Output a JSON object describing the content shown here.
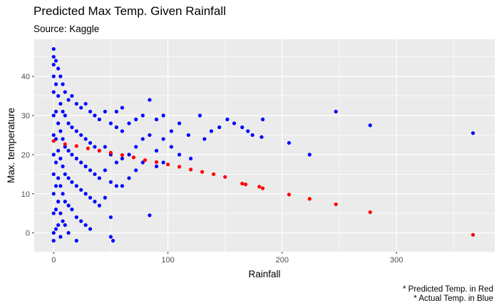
{
  "chart_data": {
    "type": "scatter",
    "title": "Predicted Max Temp. Given Rainfall",
    "subtitle": "Source: Kaggle",
    "xlabel": "Rainfall",
    "ylabel": "Max. temperature",
    "xlim": [
      -17,
      386
    ],
    "ylim": [
      -4.8,
      49.5
    ],
    "x_ticks": [
      "0",
      "100",
      "200",
      "300"
    ],
    "y_ticks": [
      "0",
      "10",
      "20",
      "30",
      "40"
    ],
    "x_tick_values": [
      0,
      100,
      200,
      300
    ],
    "y_tick_values": [
      0,
      10,
      20,
      30,
      40
    ],
    "grid": true,
    "captions": [
      "* Predicted Temp. in Red",
      "* Actual Temp. in Blue"
    ],
    "colors": {
      "actual": "#0000ff",
      "predicted": "#ff0000",
      "panel": "#ebebeb",
      "grid": "#ffffff"
    },
    "series": [
      {
        "values": [
          [
            0,
            47
          ],
          [
            0,
            45
          ],
          [
            0,
            43
          ],
          [
            0,
            40
          ],
          [
            0,
            36
          ],
          [
            0,
            30
          ],
          [
            0,
            25
          ],
          [
            0,
            20
          ],
          [
            0,
            15
          ],
          [
            0,
            10
          ],
          [
            0,
            5
          ],
          [
            0,
            0
          ],
          [
            0,
            -2
          ],
          [
            2,
            44
          ],
          [
            2,
            38
          ],
          [
            2,
            31
          ],
          [
            2,
            24
          ],
          [
            2,
            18
          ],
          [
            2,
            12
          ],
          [
            2,
            6
          ],
          [
            2,
            1
          ],
          [
            4,
            42
          ],
          [
            4,
            35
          ],
          [
            4,
            28
          ],
          [
            4,
            21
          ],
          [
            4,
            14
          ],
          [
            4,
            8
          ],
          [
            4,
            2
          ],
          [
            6,
            40
          ],
          [
            6,
            33
          ],
          [
            6,
            26
          ],
          [
            6,
            19
          ],
          [
            6,
            12
          ],
          [
            6,
            5
          ],
          [
            6,
            -1
          ],
          [
            8,
            38
          ],
          [
            8,
            31
          ],
          [
            8,
            24
          ],
          [
            8,
            17
          ],
          [
            8,
            10
          ],
          [
            8,
            3
          ],
          [
            10,
            36
          ],
          [
            10,
            30
          ],
          [
            10,
            22
          ],
          [
            10,
            15
          ],
          [
            10,
            8
          ],
          [
            10,
            2
          ],
          [
            13,
            34
          ],
          [
            13,
            28
          ],
          [
            13,
            21
          ],
          [
            13,
            14
          ],
          [
            13,
            7
          ],
          [
            13,
            0
          ],
          [
            16,
            35
          ],
          [
            16,
            27
          ],
          [
            16,
            20
          ],
          [
            16,
            13
          ],
          [
            16,
            6
          ],
          [
            20,
            33
          ],
          [
            20,
            26
          ],
          [
            20,
            19
          ],
          [
            20,
            12
          ],
          [
            20,
            4
          ],
          [
            20,
            -2
          ],
          [
            24,
            32
          ],
          [
            24,
            25
          ],
          [
            24,
            18
          ],
          [
            24,
            11
          ],
          [
            24,
            3
          ],
          [
            28,
            33
          ],
          [
            28,
            24
          ],
          [
            28,
            17
          ],
          [
            28,
            10
          ],
          [
            28,
            2
          ],
          [
            32,
            31
          ],
          [
            32,
            23
          ],
          [
            32,
            16
          ],
          [
            32,
            9
          ],
          [
            32,
            1
          ],
          [
            36,
            30
          ],
          [
            36,
            22
          ],
          [
            36,
            15
          ],
          [
            36,
            8
          ],
          [
            40,
            29
          ],
          [
            40,
            21
          ],
          [
            40,
            14
          ],
          [
            40,
            7
          ],
          [
            45,
            31
          ],
          [
            45,
            22
          ],
          [
            45,
            16
          ],
          [
            45,
            9
          ],
          [
            50,
            28
          ],
          [
            50,
            20
          ],
          [
            50,
            13
          ],
          [
            50,
            4
          ],
          [
            50,
            -1
          ],
          [
            52,
            -2
          ],
          [
            55,
            31
          ],
          [
            55,
            27
          ],
          [
            55,
            18
          ],
          [
            55,
            12
          ],
          [
            60,
            32
          ],
          [
            60,
            26
          ],
          [
            60,
            19
          ],
          [
            60,
            12
          ],
          [
            66,
            28
          ],
          [
            66,
            20
          ],
          [
            66,
            14
          ],
          [
            72,
            29
          ],
          [
            72,
            22
          ],
          [
            72,
            16
          ],
          [
            78,
            30
          ],
          [
            78,
            24
          ],
          [
            78,
            18
          ],
          [
            84,
            34
          ],
          [
            84,
            25
          ],
          [
            84,
            4.5
          ],
          [
            90,
            29
          ],
          [
            90,
            21
          ],
          [
            90,
            17
          ],
          [
            96,
            30
          ],
          [
            96,
            24
          ],
          [
            96,
            18
          ],
          [
            103,
            26
          ],
          [
            103,
            22
          ],
          [
            110,
            28
          ],
          [
            110,
            20
          ],
          [
            118,
            25
          ],
          [
            120,
            19
          ],
          [
            128,
            30
          ],
          [
            132,
            24
          ],
          [
            138,
            26
          ],
          [
            145,
            27
          ],
          [
            152,
            29
          ],
          [
            158,
            28
          ],
          [
            165,
            27
          ],
          [
            170,
            26
          ],
          [
            174,
            25
          ],
          [
            182,
            24.5
          ],
          [
            183,
            29
          ],
          [
            206,
            23
          ],
          [
            224,
            20
          ],
          [
            247,
            31
          ],
          [
            277,
            27.5
          ],
          [
            367,
            25.5
          ]
        ]
      },
      {
        "values": [
          [
            0,
            23.5
          ],
          [
            10,
            22.7
          ],
          [
            20,
            22.2
          ],
          [
            30,
            21.6
          ],
          [
            40,
            21
          ],
          [
            50,
            20.5
          ],
          [
            60,
            19.9
          ],
          [
            70,
            19.3
          ],
          [
            80,
            18.6
          ],
          [
            90,
            18.1
          ],
          [
            100,
            17.5
          ],
          [
            110,
            16.9
          ],
          [
            120,
            16.2
          ],
          [
            130,
            15.6
          ],
          [
            140,
            15
          ],
          [
            150,
            14.3
          ],
          [
            165,
            12.6
          ],
          [
            168,
            12.4
          ],
          [
            180,
            11.8
          ],
          [
            183,
            11.4
          ],
          [
            206,
            9.8
          ],
          [
            224,
            8.7
          ],
          [
            247,
            7.3
          ],
          [
            277,
            5.3
          ],
          [
            367,
            -0.5
          ]
        ]
      }
    ]
  }
}
